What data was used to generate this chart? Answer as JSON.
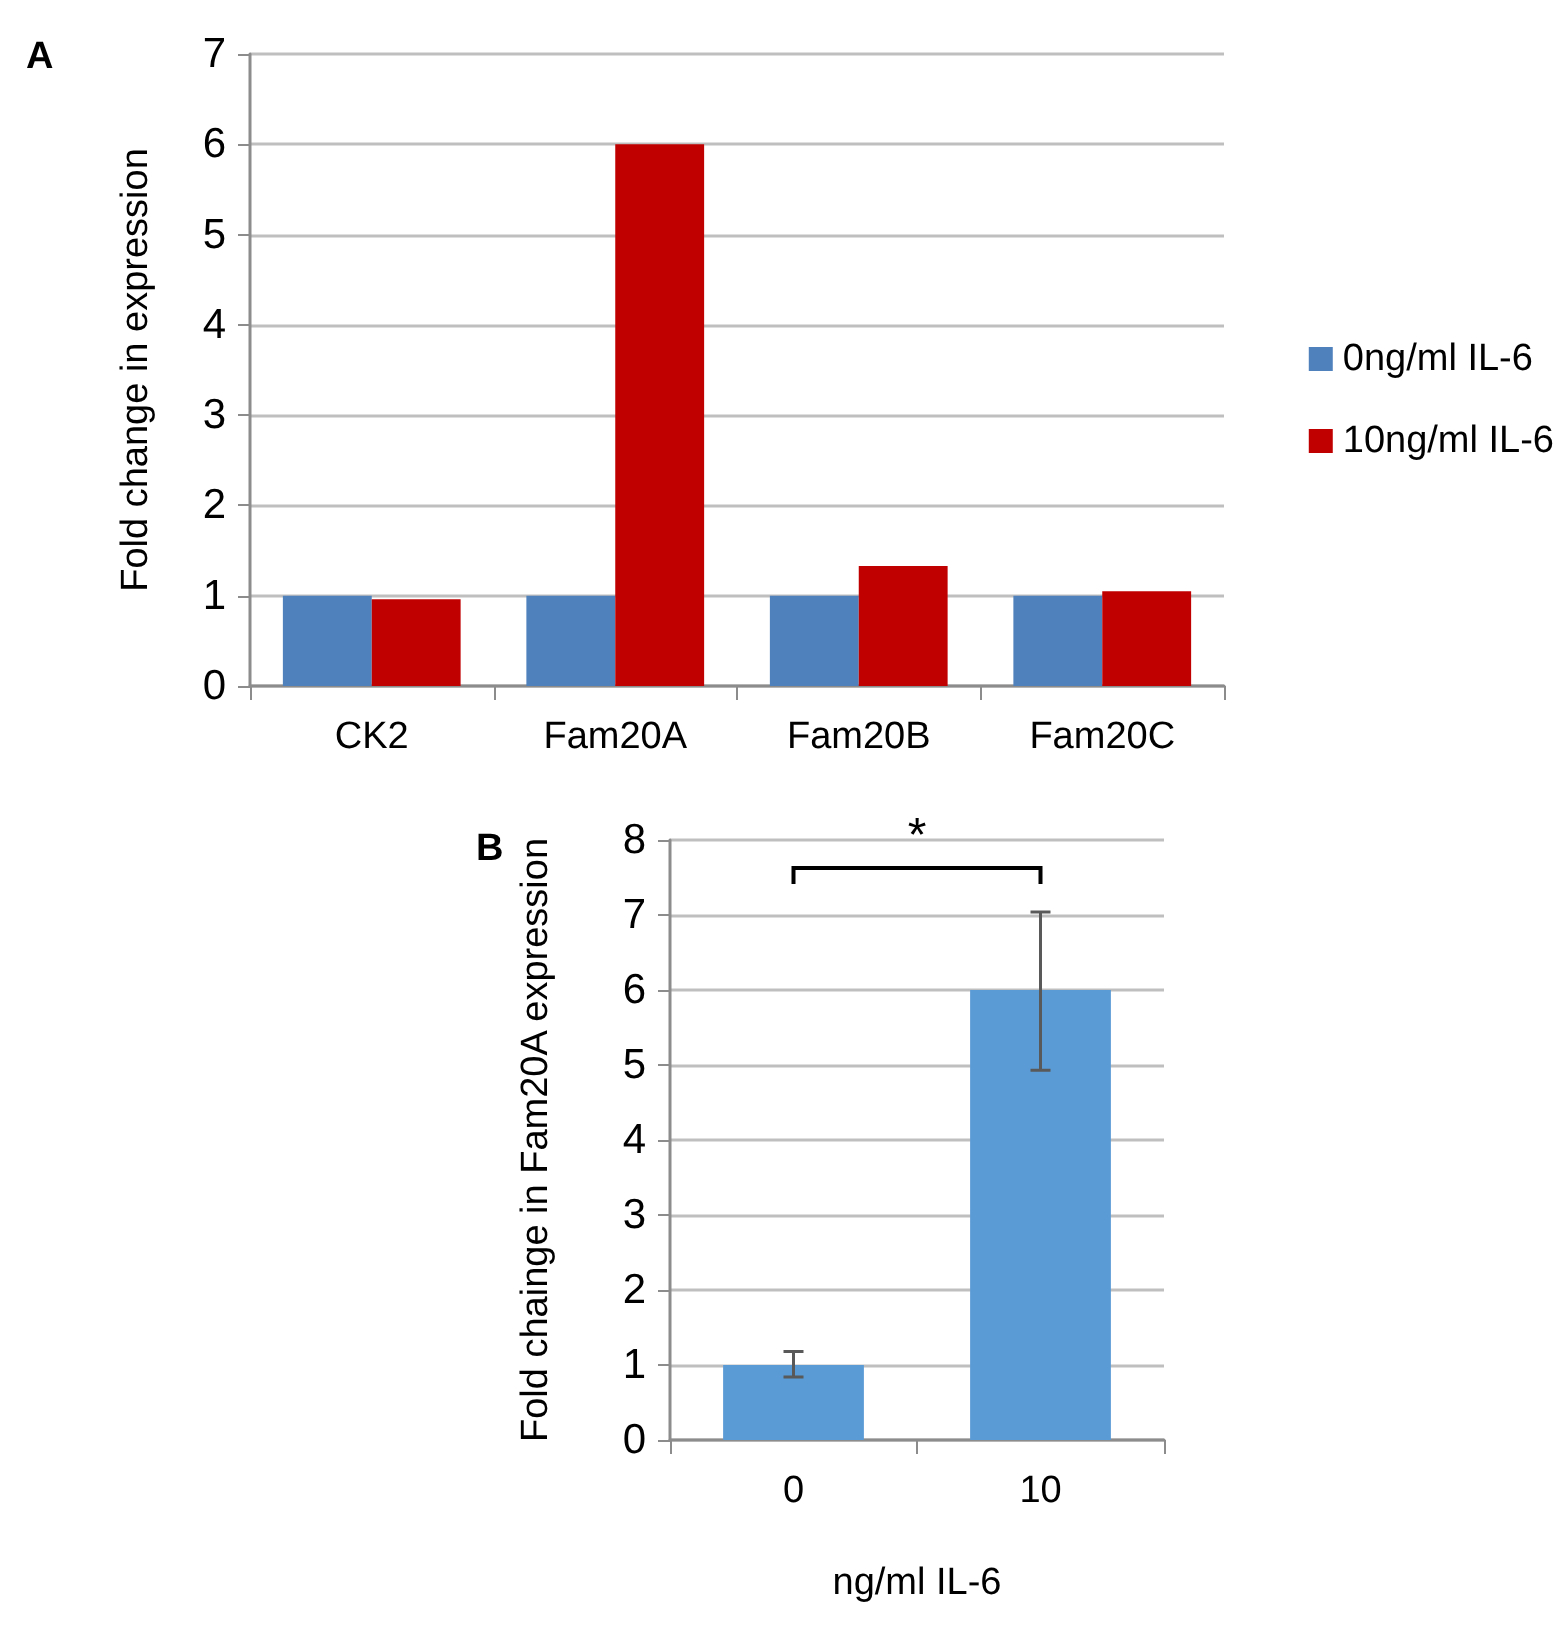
{
  "chart_data": [
    {
      "type": "bar",
      "title": "A",
      "ylabel": "Fold change in expression",
      "categories": [
        "CK2",
        "Fam20A",
        "Fam20B",
        "Fam20C"
      ],
      "series": [
        {
          "name": "0ng/ml IL-6",
          "color": "#4f81bd",
          "values": [
            1,
            1,
            1,
            1
          ]
        },
        {
          "name": "10ng/ml IL-6",
          "color": "#c00000",
          "values": [
            0.96,
            6.0,
            1.33,
            1.05
          ]
        }
      ],
      "ylim": [
        0,
        7
      ],
      "yticks": [
        0,
        1,
        2,
        3,
        4,
        5,
        6,
        7
      ],
      "grid": "y",
      "legend": "right"
    },
    {
      "type": "bar",
      "title": "B",
      "xlabel": "ng/ml IL-6",
      "ylabel": "Fold chainge in Fam20A expression",
      "categories": [
        "0",
        "10"
      ],
      "values": [
        1,
        6
      ],
      "color": "#5b9bd5",
      "errors": [
        [
          0.84,
          1.18
        ],
        [
          4.93,
          7.04
        ]
      ],
      "ylim": [
        0,
        8
      ],
      "yticks": [
        0,
        1,
        2,
        3,
        4,
        5,
        6,
        7,
        8
      ],
      "grid": "y",
      "annotations": [
        "*"
      ]
    }
  ]
}
